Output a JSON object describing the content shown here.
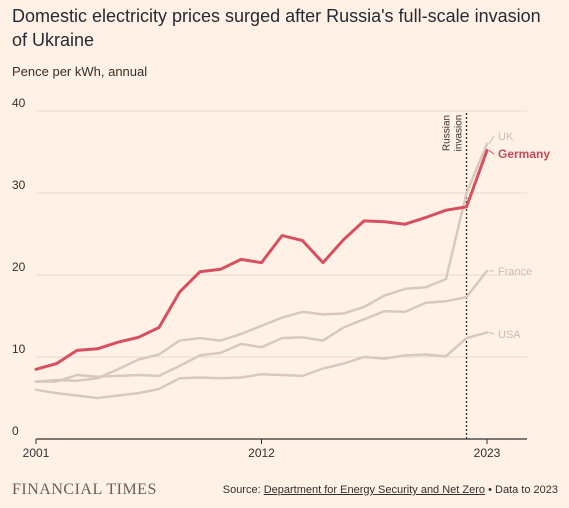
{
  "title": "Domestic electricity prices surged after Russia's full-scale invasion of Ukraine",
  "subtitle": "Pence per kWh, annual",
  "branding": "FINANCIAL TIMES",
  "source": {
    "prefix": "Source: ",
    "link": "Department for Energy Security and Net Zero",
    "sep": " • ",
    "note": "Data to 2023"
  },
  "chart_data": {
    "type": "line",
    "title": "Domestic electricity prices surged after Russia's full-scale invasion of Ukraine",
    "ylabel": "Pence per kWh, annual",
    "xlabel": "",
    "xlim": [
      2001,
      2023
    ],
    "ylim": [
      0,
      40
    ],
    "x_ticks": [
      "2001",
      "2012",
      "2023"
    ],
    "y_ticks": [
      "0",
      "10",
      "20",
      "30",
      "40"
    ],
    "grid": true,
    "annotation": {
      "text": "Russian invasion",
      "x": 2022
    },
    "x": [
      2001,
      2002,
      2003,
      2004,
      2005,
      2006,
      2007,
      2008,
      2009,
      2010,
      2011,
      2012,
      2013,
      2014,
      2015,
      2016,
      2017,
      2018,
      2019,
      2020,
      2021,
      2022,
      2023
    ],
    "series": [
      {
        "name": "UK",
        "color": "#d9c9bd",
        "values": [
          7.0,
          7.2,
          7.1,
          7.4,
          8.5,
          9.7,
          10.3,
          12.0,
          12.3,
          12.0,
          12.8,
          13.8,
          14.8,
          15.5,
          15.2,
          15.3,
          16.1,
          17.5,
          18.3,
          18.5,
          19.5,
          30.0,
          36.0
        ]
      },
      {
        "name": "Germany",
        "color": "#d6505f",
        "values": [
          8.5,
          9.2,
          10.8,
          11.0,
          11.8,
          12.4,
          13.6,
          17.9,
          20.4,
          20.7,
          21.9,
          21.5,
          24.8,
          24.2,
          21.5,
          24.3,
          26.6,
          26.5,
          26.2,
          27.0,
          27.9,
          28.3,
          35.2
        ]
      },
      {
        "name": "France",
        "color": "#d9c9bd",
        "values": [
          7.0,
          7.0,
          7.8,
          7.6,
          7.7,
          7.8,
          7.7,
          8.9,
          10.2,
          10.5,
          11.6,
          11.2,
          12.3,
          12.4,
          12.0,
          13.6,
          14.6,
          15.6,
          15.5,
          16.6,
          16.8,
          17.3,
          20.5
        ]
      },
      {
        "name": "USA",
        "color": "#d9c9bd",
        "values": [
          6.0,
          5.6,
          5.3,
          5.0,
          5.3,
          5.6,
          6.1,
          7.4,
          7.5,
          7.4,
          7.5,
          7.9,
          7.8,
          7.7,
          8.6,
          9.2,
          10.0,
          9.8,
          10.2,
          10.3,
          10.1,
          12.3,
          13.0
        ]
      }
    ]
  }
}
